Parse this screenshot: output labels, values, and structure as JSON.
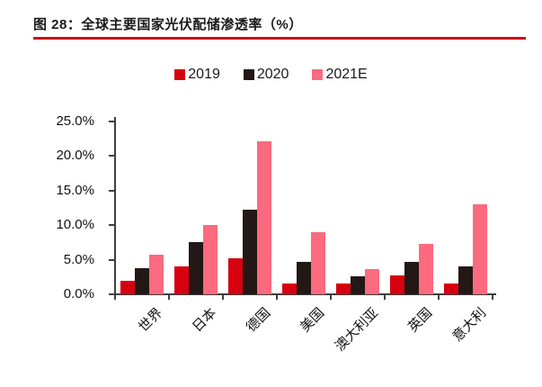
{
  "figure": {
    "title": "图 28：全球主要国家光伏配储渗透率（%）",
    "accent_rule_color": "#c8101b"
  },
  "chart_data": {
    "type": "bar",
    "title": "全球主要国家光伏配储渗透率（%）",
    "categories": [
      "世界",
      "日本",
      "德国",
      "美国",
      "澳大利亚",
      "英国",
      "意大利"
    ],
    "series": [
      {
        "name": "2019",
        "color": "#d7000f",
        "values": [
          2.0,
          4.0,
          5.2,
          1.5,
          1.5,
          2.7,
          1.6
        ]
      },
      {
        "name": "2020",
        "color": "#231815",
        "values": [
          3.8,
          7.5,
          12.3,
          4.7,
          2.6,
          4.7,
          4.1
        ]
      },
      {
        "name": "2021E",
        "color": "#fb6a7e",
        "values": [
          5.7,
          10.0,
          22.2,
          9.0,
          3.6,
          7.3,
          13.0
        ]
      }
    ],
    "xlabel": "",
    "ylabel": "",
    "ylim": [
      0,
      25
    ],
    "ytick_values": [
      0,
      5,
      10,
      15,
      20,
      25
    ],
    "ytick_labels": [
      "0.0%",
      "5.0%",
      "10.0%",
      "15.0%",
      "20.0%",
      "25.0%"
    ],
    "grid": false,
    "legend_position": "top"
  }
}
